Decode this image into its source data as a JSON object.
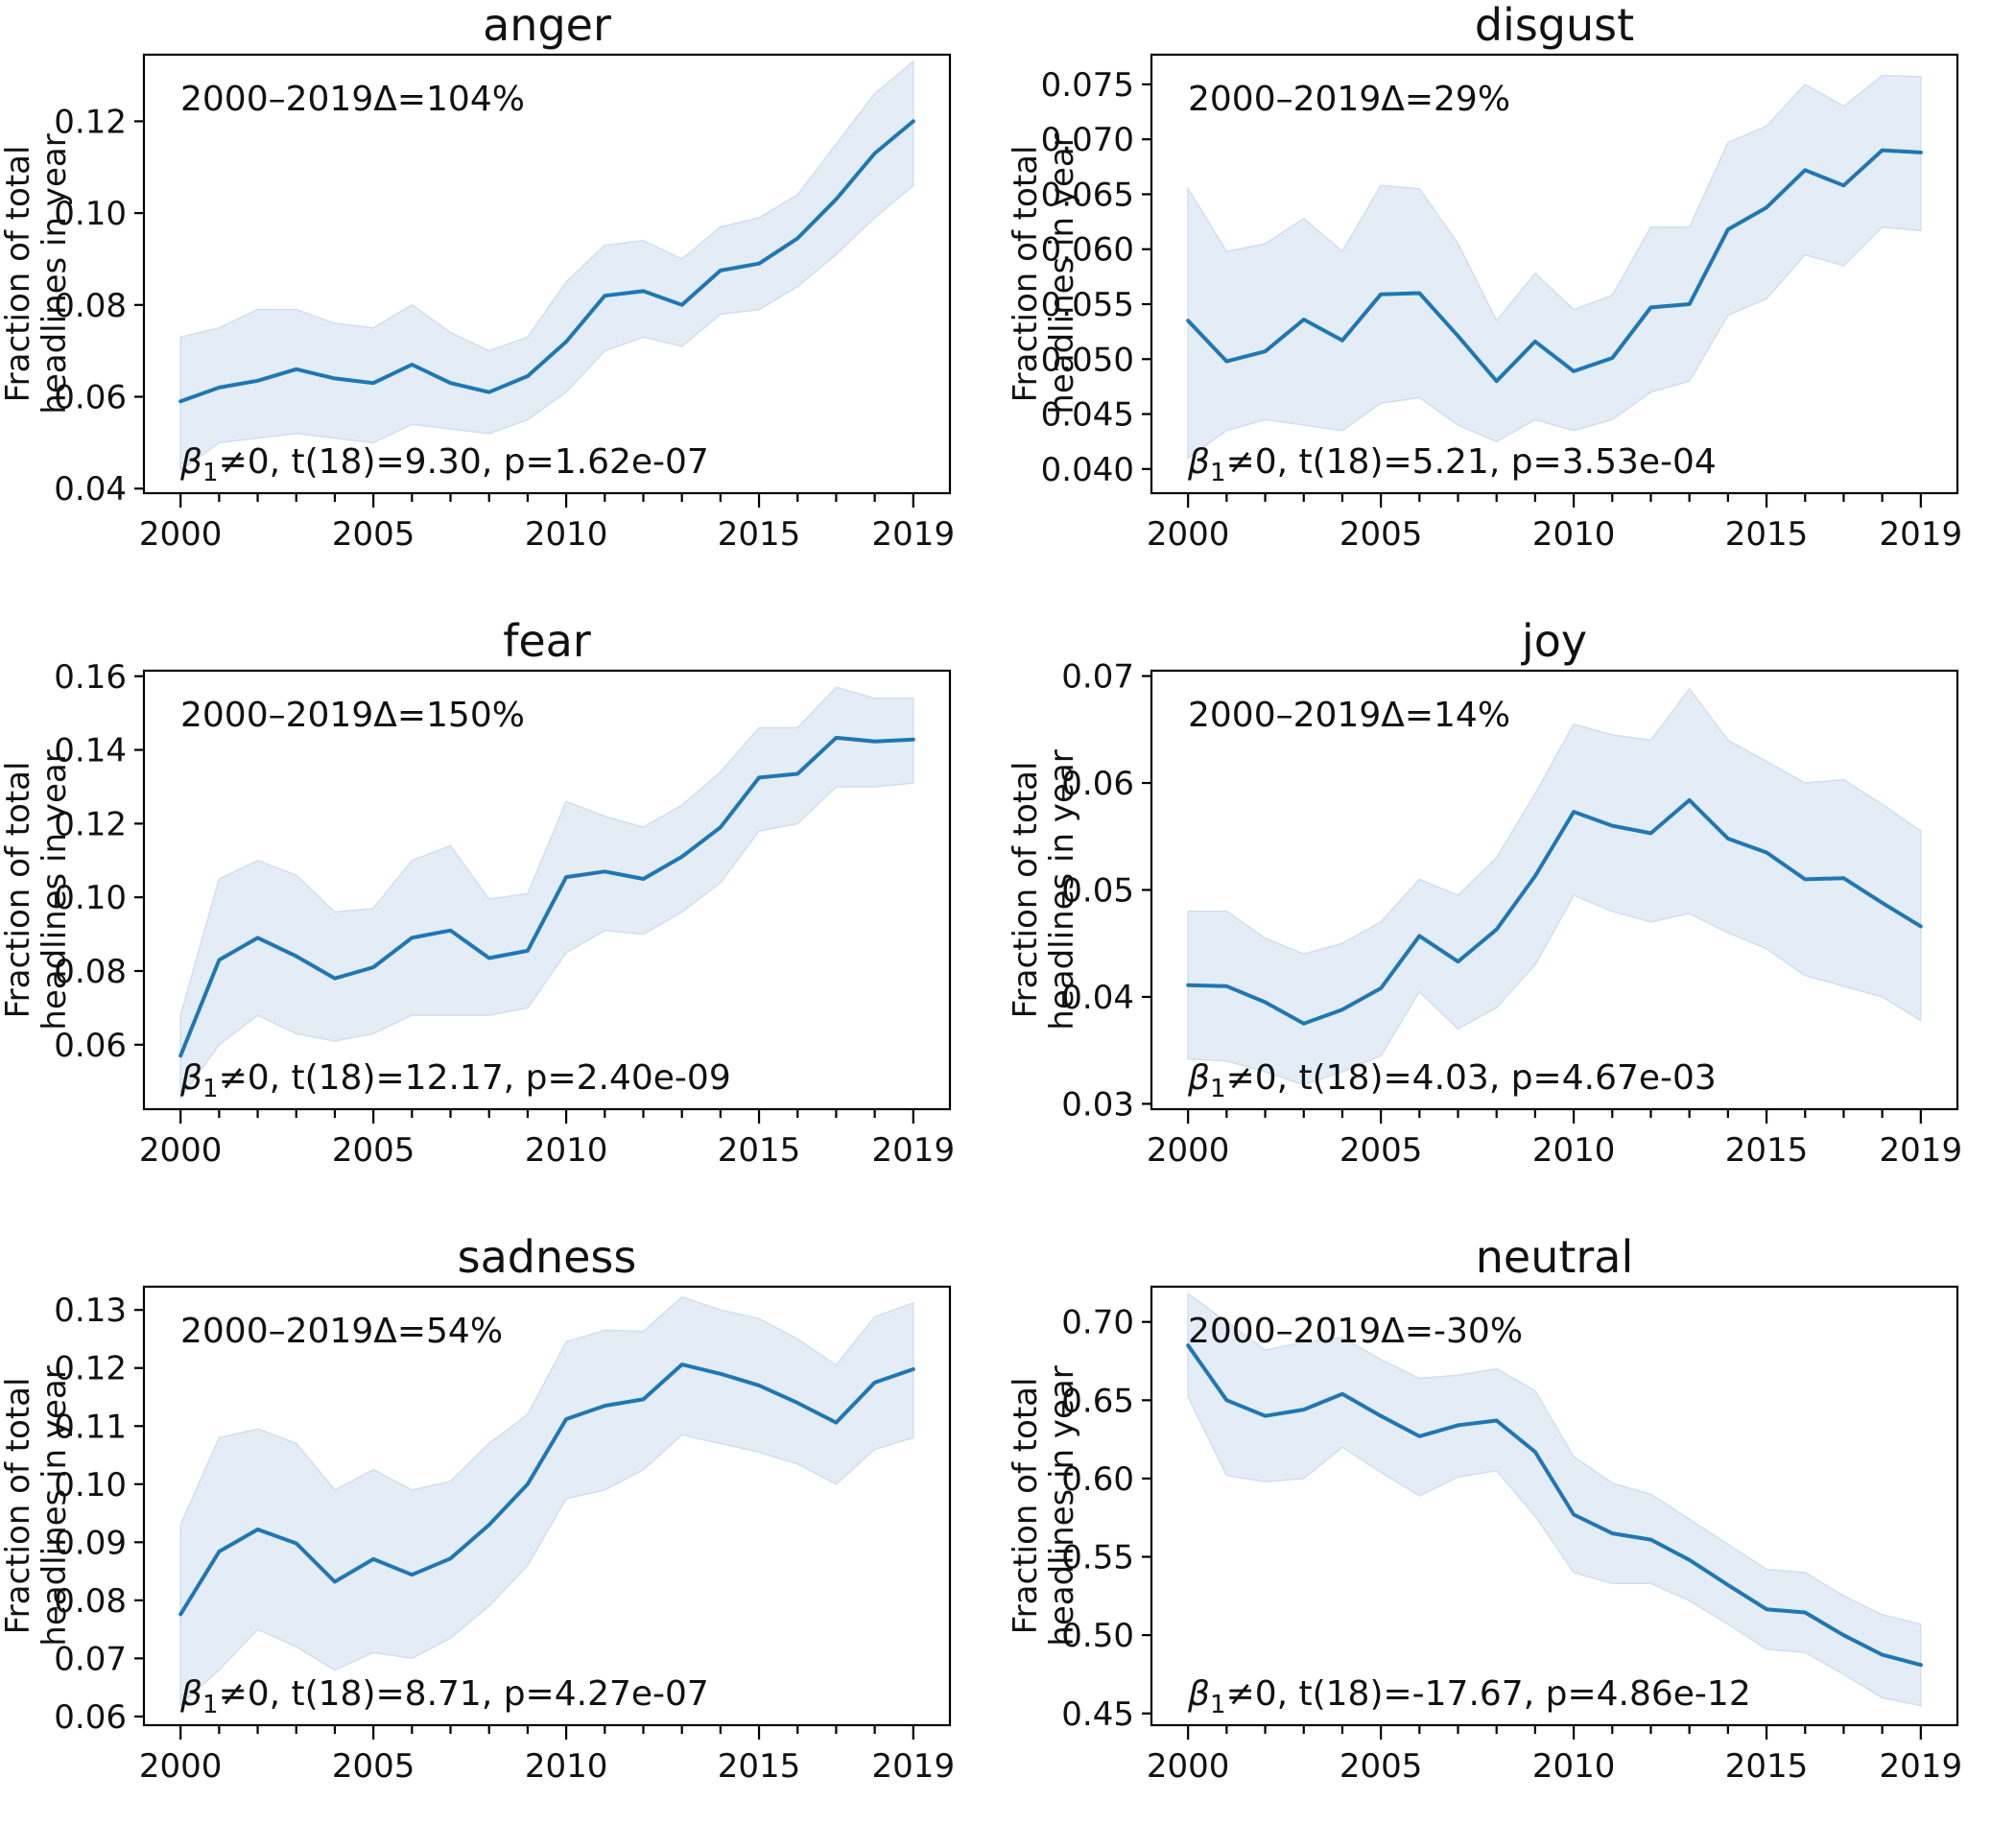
{
  "figure": {
    "background": "#ffffff",
    "line_color": "#1f77b4",
    "band_fill": "#e4edf6",
    "band_edge": "#cfdfef",
    "axis_color": "#000000",
    "text_color": "#111111",
    "ylabel_lines": [
      "Fraction of total",
      "headlines in year"
    ]
  },
  "chart_data": [
    {
      "type": "line",
      "key": "anger",
      "title": "anger",
      "delta_label": "2000–2019Δ=104%",
      "stats": {
        "beta": "β",
        "subscript": "1",
        "rest": "≠0, t(18)=9.30, p=1.62e-07"
      },
      "xlabel": "",
      "ylabel": "Fraction of total headlines in year",
      "x": [
        2000,
        2001,
        2002,
        2003,
        2004,
        2005,
        2006,
        2007,
        2008,
        2009,
        2010,
        2011,
        2012,
        2013,
        2014,
        2015,
        2016,
        2017,
        2018,
        2019
      ],
      "xticks": [
        2000,
        2005,
        2010,
        2015,
        2019
      ],
      "xtick_labels": [
        "2000",
        "2005",
        "2010",
        "2015",
        "2019"
      ],
      "values": [
        0.059,
        0.062,
        0.0635,
        0.066,
        0.064,
        0.063,
        0.067,
        0.063,
        0.061,
        0.0645,
        0.072,
        0.082,
        0.083,
        0.08,
        0.0875,
        0.089,
        0.0945,
        0.103,
        0.113,
        0.12
      ],
      "band_lower": [
        0.044,
        0.05,
        0.051,
        0.052,
        0.051,
        0.05,
        0.054,
        0.053,
        0.052,
        0.055,
        0.061,
        0.07,
        0.073,
        0.071,
        0.078,
        0.079,
        0.084,
        0.091,
        0.099,
        0.106
      ],
      "band_upper": [
        0.073,
        0.075,
        0.079,
        0.079,
        0.076,
        0.075,
        0.08,
        0.074,
        0.07,
        0.073,
        0.085,
        0.093,
        0.094,
        0.09,
        0.097,
        0.099,
        0.104,
        0.115,
        0.126,
        0.133
      ],
      "ylim": [
        0.039,
        0.1345
      ],
      "yticks": [
        0.04,
        0.06,
        0.08,
        0.1,
        0.12
      ],
      "ytick_labels": [
        "0.04",
        "0.06",
        "0.08",
        "0.10",
        "0.12"
      ]
    },
    {
      "type": "line",
      "key": "disgust",
      "title": "disgust",
      "delta_label": "2000–2019Δ=29%",
      "stats": {
        "beta": "β",
        "subscript": "1",
        "rest": "≠0, t(18)=5.21, p=3.53e-04"
      },
      "xlabel": "",
      "ylabel": "Fraction of total headlines in year",
      "x": [
        2000,
        2001,
        2002,
        2003,
        2004,
        2005,
        2006,
        2007,
        2008,
        2009,
        2010,
        2011,
        2012,
        2013,
        2014,
        2015,
        2016,
        2017,
        2018,
        2019
      ],
      "xticks": [
        2000,
        2005,
        2010,
        2015,
        2019
      ],
      "xtick_labels": [
        "2000",
        "2005",
        "2010",
        "2015",
        "2019"
      ],
      "values": [
        0.0535,
        0.0498,
        0.0507,
        0.0536,
        0.0517,
        0.0559,
        0.056,
        0.0521,
        0.048,
        0.0516,
        0.0489,
        0.0501,
        0.0547,
        0.055,
        0.0618,
        0.0638,
        0.0672,
        0.0658,
        0.069,
        0.0688
      ],
      "band_lower": [
        0.041,
        0.0435,
        0.0445,
        0.044,
        0.0435,
        0.046,
        0.0465,
        0.044,
        0.0425,
        0.0445,
        0.0435,
        0.0445,
        0.047,
        0.048,
        0.054,
        0.0555,
        0.0595,
        0.0585,
        0.062,
        0.0617
      ],
      "band_upper": [
        0.0655,
        0.0598,
        0.0605,
        0.0628,
        0.0598,
        0.0658,
        0.0655,
        0.0605,
        0.0535,
        0.0578,
        0.0545,
        0.0558,
        0.062,
        0.062,
        0.0697,
        0.0712,
        0.075,
        0.073,
        0.0758,
        0.0757
      ],
      "ylim": [
        0.0378,
        0.0777
      ],
      "yticks": [
        0.04,
        0.045,
        0.05,
        0.055,
        0.06,
        0.065,
        0.07,
        0.075
      ],
      "ytick_labels": [
        "0.040",
        "0.045",
        "0.050",
        "0.055",
        "0.060",
        "0.065",
        "0.070",
        "0.075"
      ]
    },
    {
      "type": "line",
      "key": "fear",
      "title": "fear",
      "delta_label": "2000–2019Δ=150%",
      "stats": {
        "beta": "β",
        "subscript": "1",
        "rest": "≠0, t(18)=12.17, p=2.40e-09"
      },
      "xlabel": "",
      "ylabel": "Fraction of total headlines in year",
      "x": [
        2000,
        2001,
        2002,
        2003,
        2004,
        2005,
        2006,
        2007,
        2008,
        2009,
        2010,
        2011,
        2012,
        2013,
        2014,
        2015,
        2016,
        2017,
        2018,
        2019
      ],
      "xticks": [
        2000,
        2005,
        2010,
        2015,
        2019
      ],
      "xtick_labels": [
        "2000",
        "2005",
        "2010",
        "2015",
        "2019"
      ],
      "values": [
        0.057,
        0.083,
        0.089,
        0.084,
        0.078,
        0.081,
        0.089,
        0.091,
        0.0835,
        0.0855,
        0.1055,
        0.107,
        0.105,
        0.111,
        0.119,
        0.1325,
        0.1335,
        0.1433,
        0.1423,
        0.1428
      ],
      "band_lower": [
        0.0455,
        0.06,
        0.068,
        0.063,
        0.061,
        0.063,
        0.068,
        0.068,
        0.068,
        0.07,
        0.085,
        0.091,
        0.09,
        0.096,
        0.104,
        0.118,
        0.12,
        0.13,
        0.13,
        0.131
      ],
      "band_upper": [
        0.068,
        0.105,
        0.11,
        0.106,
        0.096,
        0.097,
        0.11,
        0.114,
        0.0995,
        0.101,
        0.126,
        0.122,
        0.119,
        0.125,
        0.134,
        0.146,
        0.146,
        0.157,
        0.154,
        0.154
      ],
      "ylim": [
        0.0425,
        0.1615
      ],
      "yticks": [
        0.06,
        0.08,
        0.1,
        0.12,
        0.14,
        0.16
      ],
      "ytick_labels": [
        "0.06",
        "0.08",
        "0.10",
        "0.12",
        "0.14",
        "0.16"
      ]
    },
    {
      "type": "line",
      "key": "joy",
      "title": "joy",
      "delta_label": "2000–2019Δ=14%",
      "stats": {
        "beta": "β",
        "subscript": "1",
        "rest": "≠0, t(18)=4.03, p=4.67e-03"
      },
      "xlabel": "",
      "ylabel": "Fraction of total headlines in year",
      "x": [
        2000,
        2001,
        2002,
        2003,
        2004,
        2005,
        2006,
        2007,
        2008,
        2009,
        2010,
        2011,
        2012,
        2013,
        2014,
        2015,
        2016,
        2017,
        2018,
        2019
      ],
      "xticks": [
        2000,
        2005,
        2010,
        2015,
        2019
      ],
      "xtick_labels": [
        "2000",
        "2005",
        "2010",
        "2015",
        "2019"
      ],
      "values": [
        0.0411,
        0.041,
        0.0395,
        0.0375,
        0.0388,
        0.0408,
        0.0457,
        0.0433,
        0.0463,
        0.0513,
        0.0573,
        0.056,
        0.0553,
        0.0584,
        0.0548,
        0.0535,
        0.051,
        0.0511,
        0.0488,
        0.0466
      ],
      "band_lower": [
        0.0342,
        0.034,
        0.033,
        0.0318,
        0.033,
        0.0345,
        0.0405,
        0.037,
        0.039,
        0.043,
        0.0495,
        0.048,
        0.047,
        0.0478,
        0.046,
        0.0445,
        0.042,
        0.041,
        0.04,
        0.0378
      ],
      "band_upper": [
        0.048,
        0.048,
        0.0455,
        0.044,
        0.045,
        0.047,
        0.051,
        0.0495,
        0.053,
        0.059,
        0.0655,
        0.0645,
        0.064,
        0.0688,
        0.064,
        0.062,
        0.06,
        0.0603,
        0.058,
        0.0555
      ],
      "ylim": [
        0.0295,
        0.0705
      ],
      "yticks": [
        0.03,
        0.04,
        0.05,
        0.06,
        0.07
      ],
      "ytick_labels": [
        "0.03",
        "0.04",
        "0.05",
        "0.06",
        "0.07"
      ]
    },
    {
      "type": "line",
      "key": "sadness",
      "title": "sadness",
      "delta_label": "2000–2019Δ=54%",
      "stats": {
        "beta": "β",
        "subscript": "1",
        "rest": "≠0, t(18)=8.71, p=4.27e-07"
      },
      "xlabel": "",
      "ylabel": "Fraction of total headlines in year",
      "x": [
        2000,
        2001,
        2002,
        2003,
        2004,
        2005,
        2006,
        2007,
        2008,
        2009,
        2010,
        2011,
        2012,
        2013,
        2014,
        2015,
        2016,
        2017,
        2018,
        2019
      ],
      "xticks": [
        2000,
        2005,
        2010,
        2015,
        2019
      ],
      "xtick_labels": [
        "2000",
        "2005",
        "2010",
        "2015",
        "2019"
      ],
      "values": [
        0.0776,
        0.0884,
        0.0922,
        0.0898,
        0.0832,
        0.0871,
        0.0844,
        0.0872,
        0.093,
        0.1,
        0.1112,
        0.1135,
        0.1146,
        0.1206,
        0.119,
        0.117,
        0.114,
        0.1106,
        0.1175,
        0.1198
      ],
      "band_lower": [
        0.062,
        0.068,
        0.075,
        0.072,
        0.068,
        0.071,
        0.07,
        0.0735,
        0.079,
        0.086,
        0.0975,
        0.099,
        0.1025,
        0.1085,
        0.107,
        0.1055,
        0.1035,
        0.1,
        0.106,
        0.108
      ],
      "band_upper": [
        0.093,
        0.108,
        0.1095,
        0.107,
        0.099,
        0.1025,
        0.099,
        0.1005,
        0.107,
        0.112,
        0.1245,
        0.1265,
        0.1263,
        0.1322,
        0.13,
        0.1285,
        0.125,
        0.1205,
        0.1288,
        0.1312
      ],
      "ylim": [
        0.0585,
        0.134
      ],
      "yticks": [
        0.06,
        0.07,
        0.08,
        0.09,
        0.1,
        0.11,
        0.12,
        0.13
      ],
      "ytick_labels": [
        "0.06",
        "0.07",
        "0.08",
        "0.09",
        "0.10",
        "0.11",
        "0.12",
        "0.13"
      ]
    },
    {
      "type": "line",
      "key": "neutral",
      "title": "neutral",
      "delta_label": "2000–2019Δ=-30%",
      "stats": {
        "beta": "β",
        "subscript": "1",
        "rest": "≠0, t(18)=-17.67, p=4.86e-12"
      },
      "xlabel": "",
      "ylabel": "Fraction of total headlines in year",
      "x": [
        2000,
        2001,
        2002,
        2003,
        2004,
        2005,
        2006,
        2007,
        2008,
        2009,
        2010,
        2011,
        2012,
        2013,
        2014,
        2015,
        2016,
        2017,
        2018,
        2019
      ],
      "xticks": [
        2000,
        2005,
        2010,
        2015,
        2019
      ],
      "xtick_labels": [
        "2000",
        "2005",
        "2010",
        "2015",
        "2019"
      ],
      "values": [
        0.685,
        0.65,
        0.64,
        0.644,
        0.654,
        0.64,
        0.627,
        0.634,
        0.637,
        0.617,
        0.577,
        0.565,
        0.561,
        0.548,
        0.532,
        0.5165,
        0.5145,
        0.5,
        0.4875,
        0.481
      ],
      "band_lower": [
        0.652,
        0.602,
        0.598,
        0.6,
        0.62,
        0.604,
        0.589,
        0.601,
        0.605,
        0.576,
        0.54,
        0.533,
        0.533,
        0.522,
        0.507,
        0.491,
        0.489,
        0.475,
        0.46,
        0.455
      ],
      "band_upper": [
        0.718,
        0.7,
        0.682,
        0.687,
        0.69,
        0.676,
        0.664,
        0.666,
        0.67,
        0.656,
        0.614,
        0.597,
        0.59,
        0.574,
        0.558,
        0.542,
        0.54,
        0.525,
        0.513,
        0.507
      ],
      "ylim": [
        0.4425,
        0.7225
      ],
      "yticks": [
        0.45,
        0.5,
        0.55,
        0.6,
        0.65,
        0.7
      ],
      "ytick_labels": [
        "0.45",
        "0.50",
        "0.55",
        "0.60",
        "0.65",
        "0.70"
      ]
    }
  ]
}
